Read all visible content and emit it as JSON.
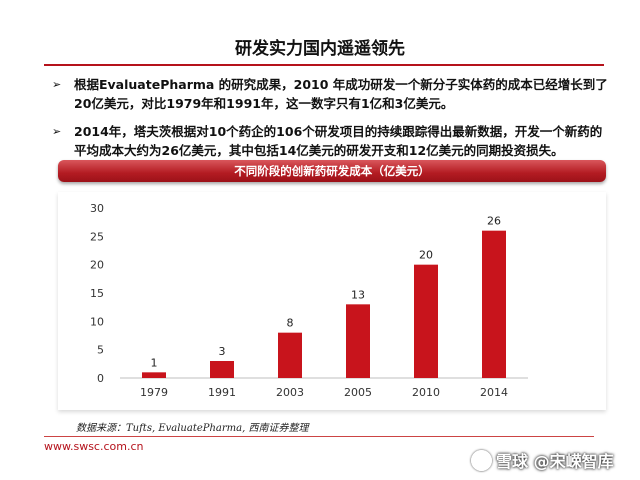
{
  "slide": {
    "title": "研发实力国内遥遥领先",
    "bullets": [
      {
        "marker": "➢",
        "text": "根据EvaluatePharma 的研究成果，2010 年成功研发一个新分子实体药的成本已经增长到了20亿美元，对比1979年和1991年，这一数字只有1亿和3亿美元。"
      },
      {
        "marker": "➢",
        "text": "2014年，塔夫茨根据对10个药企的106个研发项目的持续跟踪得出最新数据，开发一个新药的平均成本大约为26亿美元，其中包括14亿美元的研发开支和12亿美元的同期投资损失。"
      }
    ],
    "source": "数据来源：Tufts, EvaluatePharma, 西南证券整理",
    "footer_url": "www.swsc.com.cn",
    "watermark": "雪球 @宋嵘智库"
  },
  "colors": {
    "accent": "#b5121b",
    "bar": "#c8141c",
    "banner": "#b31b22"
  },
  "chart_data": {
    "type": "bar",
    "title": "不同阶段的创新药研发成本（亿美元）",
    "categories": [
      "1979",
      "1991",
      "2003",
      "2005",
      "2010",
      "2014"
    ],
    "values": [
      1,
      3,
      8,
      13,
      20,
      26
    ],
    "yticks": [
      "0",
      "5",
      "10",
      "15",
      "20",
      "25",
      "30"
    ],
    "ylim": [
      0,
      30
    ],
    "grid": false,
    "data_labels": true
  }
}
